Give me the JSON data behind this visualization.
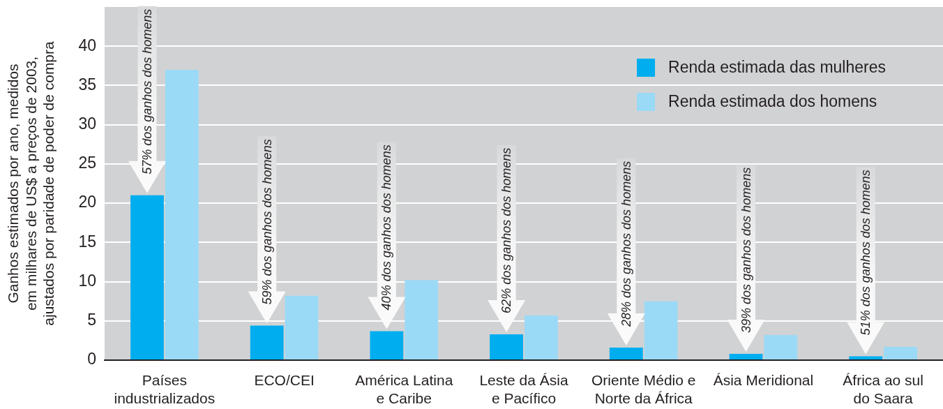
{
  "chart_data": {
    "type": "bar",
    "ylabel": "Ganhos estimados por ano, medidos em milhares de US$ a preços de 2003, ajustados por paridade de poder de compra",
    "categories": [
      "Países industrializados",
      "ECO/CEI",
      "América Latina e Caribe",
      "Leste da Ásia e Pacífico",
      "Oriente Médio e Norte da África",
      "Ásia Meridional",
      "África ao sul do Saara"
    ],
    "series": [
      {
        "name": "Renda estimada das mulheres",
        "color": "#00aeef",
        "values": [
          21.0,
          4.4,
          3.7,
          3.3,
          1.6,
          0.8,
          0.5
        ]
      },
      {
        "name": "Renda estimada dos homens",
        "color": "#9bdaf6",
        "values": [
          37.0,
          8.2,
          10.2,
          5.7,
          7.5,
          3.2,
          1.7
        ]
      }
    ],
    "ylim": [
      0,
      45
    ],
    "yticks": [
      0,
      5,
      10,
      15,
      20,
      25,
      30,
      35,
      40
    ],
    "grid": "y",
    "legend": "top right",
    "annotations": [
      {
        "text": "57% dos ganhos dos homens",
        "x": "Países industrializados",
        "y": 21.0
      },
      {
        "text": "59% dos ganhos dos homens",
        "x": "ECO/CEI",
        "y": 4.4
      },
      {
        "text": "40% dos ganhos dos homens",
        "x": "América Latina e Caribe",
        "y": 3.7
      },
      {
        "text": "62% dos ganhos dos homens",
        "x": "Leste da Ásia e Pacífico",
        "y": 3.3
      },
      {
        "text": "28% dos ganhos dos homens",
        "x": "Oriente Médio e Norte da África",
        "y": 1.6
      },
      {
        "text": "39% dos ganhos dos homens",
        "x": "Ásia Meridional",
        "y": 0.8
      },
      {
        "text": "51% dos ganhos dos homens",
        "x": "África ao sul do Saara",
        "y": 0.5
      }
    ]
  }
}
